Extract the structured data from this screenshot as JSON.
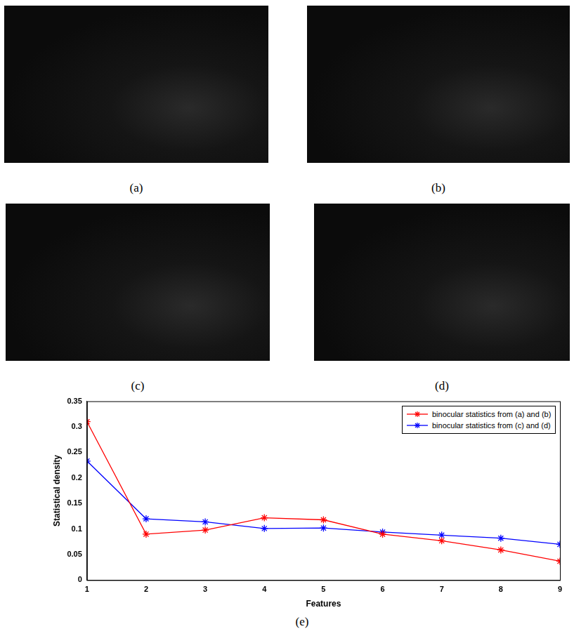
{
  "figure": {
    "images": [
      {
        "caption": "(a)"
      },
      {
        "caption": "(b)"
      },
      {
        "caption": "(c)"
      },
      {
        "caption": "(d)"
      }
    ],
    "chart_caption": "(e)"
  },
  "chart_data": {
    "type": "line",
    "x_label": "Features",
    "y_label": "Statistical density",
    "x": [
      1,
      2,
      3,
      4,
      5,
      6,
      7,
      8,
      9
    ],
    "series": [
      {
        "name": "binocular statistics from (a) and (b)",
        "color": "#ff0000",
        "marker": "star",
        "line_style": "solid",
        "values": [
          0.31,
          0.09,
          0.098,
          0.122,
          0.118,
          0.09,
          0.077,
          0.059,
          0.037
        ]
      },
      {
        "name": "binocular statistics from (c) and (d)",
        "color": "#0000ff",
        "marker": "star",
        "line_style": "solid",
        "values": [
          0.233,
          0.12,
          0.114,
          0.101,
          0.102,
          0.094,
          0.088,
          0.082,
          0.07
        ]
      }
    ],
    "xlim": [
      1,
      9
    ],
    "xticks": [
      1,
      2,
      3,
      4,
      5,
      6,
      7,
      8,
      9
    ],
    "ylim": [
      0,
      0.35
    ],
    "yticks": [
      0,
      0.05,
      0.1,
      0.15,
      0.2,
      0.25,
      0.3,
      0.35
    ],
    "grid": false,
    "legend": "top-right"
  }
}
